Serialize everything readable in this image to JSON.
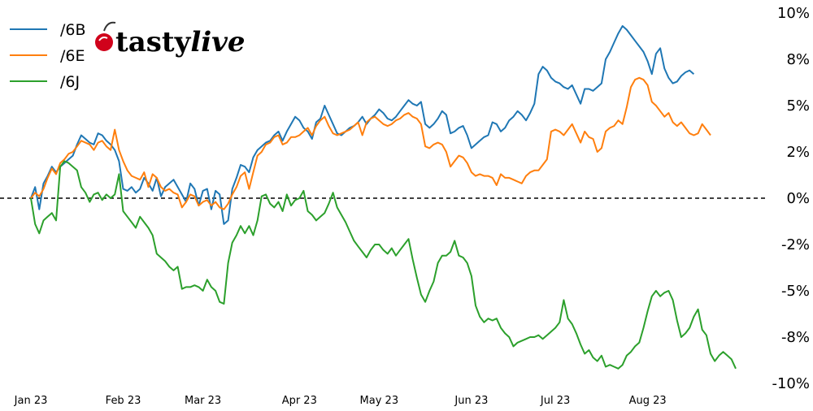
{
  "brand": {
    "name_part1": "tasty",
    "name_part2": "live",
    "icon": "cherry-icon",
    "icon_color": "#d0021b"
  },
  "chart_data": {
    "type": "line",
    "title": "",
    "xlabel": "",
    "ylabel": "",
    "ylim": [
      -10,
      10
    ],
    "y_ticks": [
      {
        "value": 10,
        "label": "10%"
      },
      {
        "value": 7.5,
        "label": "8%"
      },
      {
        "value": 5,
        "label": "5%"
      },
      {
        "value": 2.5,
        "label": "2%"
      },
      {
        "value": 0,
        "label": "0%"
      },
      {
        "value": -2.5,
        "label": "-2%"
      },
      {
        "value": -5,
        "label": "-5%"
      },
      {
        "value": -7.5,
        "label": "-8%"
      },
      {
        "value": -10,
        "label": "-10%"
      }
    ],
    "x_ticks": [
      {
        "value": 0,
        "label": "Jan 23"
      },
      {
        "value": 22,
        "label": "Feb 23"
      },
      {
        "value": 41,
        "label": "Mar 23"
      },
      {
        "value": 64,
        "label": "Apr 23"
      },
      {
        "value": 83,
        "label": "May 23"
      },
      {
        "value": 105,
        "label": "Jun 23"
      },
      {
        "value": 125,
        "label": "Jul 23"
      },
      {
        "value": 147,
        "label": "Aug 23"
      }
    ],
    "x_points_note": "",
    "zero_line": true,
    "grid": false,
    "legend_position": "top-left",
    "series": [
      {
        "name": "/6B",
        "color": "#1f77b4",
        "values": [
          0,
          0.6,
          -0.6,
          0.8,
          1.2,
          1.7,
          1.4,
          1.7,
          1.9,
          2.1,
          2.3,
          2.9,
          3.4,
          3.2,
          3.0,
          2.9,
          3.5,
          3.4,
          3.1,
          2.9,
          2.6,
          2.0,
          0.5,
          0.4,
          0.6,
          0.3,
          0.5,
          1.1,
          0.8,
          0.4,
          1.1,
          0.1,
          0.6,
          0.8,
          1.0,
          0.6,
          0.2,
          -0.2,
          0.8,
          0.5,
          -0.4,
          0.4,
          0.5,
          -0.6,
          0.4,
          0.2,
          -1.4,
          -1.2,
          0.5,
          1.1,
          1.8,
          1.7,
          1.4,
          2.2,
          2.6,
          2.8,
          3.0,
          3.1,
          3.4,
          3.6,
          3.1,
          3.6,
          4.0,
          4.4,
          4.2,
          3.8,
          3.6,
          3.2,
          4.1,
          4.3,
          5.0,
          4.5,
          4.0,
          3.5,
          3.4,
          3.6,
          3.8,
          3.9,
          4.1,
          4.4,
          4.0,
          4.3,
          4.5,
          4.8,
          4.6,
          4.3,
          4.2,
          4.4,
          4.7,
          5.0,
          5.3,
          5.1,
          5.0,
          5.2,
          4.0,
          3.8,
          4.0,
          4.3,
          4.7,
          4.5,
          3.5,
          3.6,
          3.8,
          3.9,
          3.4,
          2.7,
          2.9,
          3.1,
          3.3,
          3.4,
          4.1,
          4.0,
          3.6,
          3.8,
          4.2,
          4.4,
          4.7,
          4.5,
          4.2,
          4.6,
          5.1,
          6.7,
          7.1,
          6.9,
          6.5,
          6.3,
          6.2,
          6.0,
          5.9,
          6.1,
          5.6,
          5.1,
          5.9,
          5.9,
          5.8,
          6.0,
          6.2,
          7.5,
          7.9,
          8.4,
          8.9,
          9.3,
          9.1,
          8.8,
          8.5,
          8.2,
          7.9,
          7.4,
          6.7,
          7.8,
          8.1,
          7.0,
          6.5,
          6.2,
          6.3,
          6.6,
          6.8,
          6.9,
          6.7
        ]
      },
      {
        "name": "/6E",
        "color": "#ff7f0e",
        "values": [
          0,
          0.3,
          0.1,
          0.5,
          1.1,
          1.6,
          1.3,
          1.9,
          2.1,
          2.4,
          2.5,
          2.8,
          3.1,
          3.0,
          2.9,
          2.6,
          3.0,
          3.1,
          2.8,
          2.6,
          3.7,
          2.6,
          2.0,
          1.5,
          1.2,
          1.1,
          1.0,
          1.4,
          0.6,
          1.3,
          1.1,
          0.6,
          0.4,
          0.5,
          0.3,
          0.2,
          -0.5,
          -0.2,
          0.2,
          0.1,
          -0.4,
          -0.2,
          -0.1,
          -0.4,
          -0.2,
          -0.5,
          -0.6,
          -0.3,
          0.2,
          0.6,
          1.2,
          1.4,
          0.5,
          1.4,
          2.3,
          2.5,
          2.9,
          3.0,
          3.3,
          3.4,
          2.9,
          3.0,
          3.3,
          3.3,
          3.4,
          3.6,
          3.8,
          3.4,
          3.9,
          4.2,
          4.4,
          3.9,
          3.5,
          3.4,
          3.5,
          3.6,
          3.7,
          3.9,
          4.1,
          3.4,
          4.1,
          4.3,
          4.4,
          4.2,
          4.0,
          3.9,
          4.0,
          4.2,
          4.3,
          4.5,
          4.6,
          4.4,
          4.3,
          4.0,
          2.8,
          2.7,
          2.9,
          3.0,
          2.9,
          2.5,
          1.7,
          2.0,
          2.3,
          2.2,
          1.9,
          1.4,
          1.2,
          1.3,
          1.2,
          1.2,
          1.1,
          0.7,
          1.3,
          1.1,
          1.1,
          1.0,
          0.9,
          0.8,
          1.2,
          1.4,
          1.5,
          1.5,
          1.8,
          2.1,
          3.6,
          3.7,
          3.6,
          3.4,
          3.7,
          4.0,
          3.5,
          3.0,
          3.6,
          3.3,
          3.2,
          2.5,
          2.7,
          3.6,
          3.8,
          3.9,
          4.2,
          4.0,
          4.9,
          6.0,
          6.4,
          6.5,
          6.4,
          6.1,
          5.2,
          5.0,
          4.7,
          4.4,
          4.6,
          4.1,
          3.9,
          4.1,
          3.8,
          3.5,
          3.4,
          3.5,
          4.0,
          3.7,
          3.4
        ]
      },
      {
        "name": "/6J",
        "color": "#2ca02c",
        "values": [
          0,
          -1.4,
          -1.9,
          -1.2,
          -1.0,
          -0.8,
          -1.2,
          1.7,
          2.0,
          1.9,
          1.7,
          1.5,
          0.6,
          0.3,
          -0.2,
          0.2,
          0.3,
          -0.1,
          0.2,
          0.0,
          0.2,
          1.3,
          -0.7,
          -1.0,
          -1.3,
          -1.6,
          -1.0,
          -1.3,
          -1.6,
          -2.0,
          -3.0,
          -3.2,
          -3.4,
          -3.7,
          -3.9,
          -3.7,
          -4.9,
          -4.8,
          -4.8,
          -4.7,
          -4.8,
          -5.0,
          -4.4,
          -4.8,
          -5.0,
          -5.6,
          -5.7,
          -3.5,
          -2.4,
          -2.0,
          -1.5,
          -1.9,
          -1.5,
          -2.0,
          -1.2,
          0.1,
          0.2,
          -0.3,
          -0.5,
          -0.2,
          -0.7,
          0.2,
          -0.4,
          -0.1,
          0.0,
          0.4,
          -0.7,
          -0.9,
          -1.2,
          -1.0,
          -0.8,
          -0.3,
          0.3,
          -0.5,
          -0.9,
          -1.3,
          -1.8,
          -2.3,
          -2.6,
          -2.9,
          -3.2,
          -2.8,
          -2.5,
          -2.5,
          -2.8,
          -3.0,
          -2.7,
          -3.1,
          -2.8,
          -2.5,
          -2.2,
          -3.3,
          -4.3,
          -5.2,
          -5.6,
          -5.0,
          -4.5,
          -3.5,
          -3.1,
          -3.1,
          -2.9,
          -2.3,
          -3.1,
          -3.2,
          -3.5,
          -4.2,
          -5.8,
          -6.4,
          -6.7,
          -6.5,
          -6.6,
          -6.5,
          -7.0,
          -7.3,
          -7.5,
          -8.0,
          -7.8,
          -7.7,
          -7.6,
          -7.5,
          -7.5,
          -7.4,
          -7.6,
          -7.4,
          -7.2,
          -7.0,
          -6.7,
          -5.5,
          -6.5,
          -6.8,
          -7.3,
          -7.9,
          -8.4,
          -8.2,
          -8.6,
          -8.8,
          -8.5,
          -9.1,
          -9.0,
          -9.1,
          -9.2,
          -9.0,
          -8.5,
          -8.3,
          -8.0,
          -7.8,
          -7.0,
          -6.1,
          -5.3,
          -5.0,
          -5.3,
          -5.1,
          -5.0,
          -5.5,
          -6.6,
          -7.5,
          -7.3,
          -7.0,
          -6.4,
          -6.0,
          -7.1,
          -7.4,
          -8.4,
          -8.8,
          -8.5,
          -8.3,
          -8.5,
          -8.7,
          -9.2
        ]
      }
    ]
  }
}
